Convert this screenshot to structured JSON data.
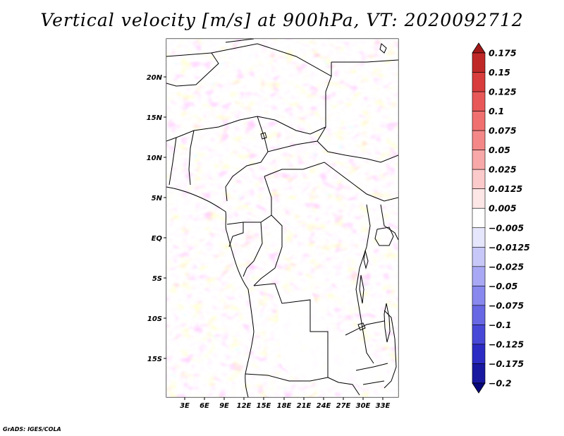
{
  "title": "Vertical velocity [m/s] at 900hPa, VT: 2020092712",
  "credit": "GrADS: IGES/COLA",
  "lat_labels": [
    "20N",
    "15N",
    "10N",
    "5N",
    "EQ",
    "5S",
    "10S",
    "15S"
  ],
  "lat_values": [
    20,
    15,
    10,
    5,
    0,
    -5,
    -10,
    -15
  ],
  "lon_labels": [
    "3E",
    "6E",
    "9E",
    "12E",
    "15E",
    "18E",
    "21E",
    "24E",
    "27E",
    "30E",
    "33E"
  ],
  "lon_values": [
    3,
    6,
    9,
    12,
    15,
    18,
    21,
    24,
    27,
    30,
    33
  ],
  "colorbar": {
    "labels": [
      "0.175",
      "0.15",
      "0.125",
      "0.1",
      "0.075",
      "0.05",
      "0.025",
      "0.0125",
      "0.005",
      "−0.005",
      "−0.0125",
      "−0.025",
      "−0.05",
      "−0.075",
      "−0.1",
      "−0.125",
      "−0.175",
      "−0.2"
    ],
    "colors": [
      "#a01818",
      "#c02828",
      "#d83c3c",
      "#e85858",
      "#f07070",
      "#f48888",
      "#f8a8a8",
      "#fbcaca",
      "#fde6e6",
      "#ffffff",
      "#e6e6fc",
      "#c8c8f8",
      "#a8a8f4",
      "#8888ee",
      "#6868e4",
      "#4848d8",
      "#2c2cc4",
      "#1818a0",
      "#08087c"
    ]
  }
}
